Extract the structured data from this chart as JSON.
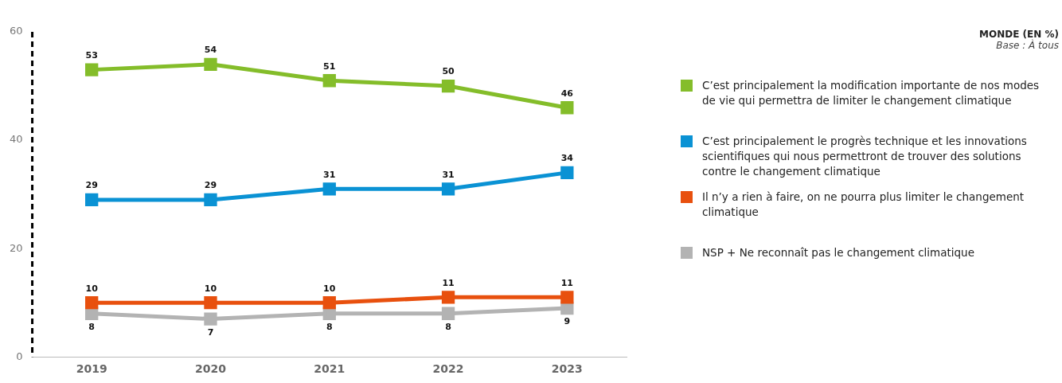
{
  "chart_data": {
    "type": "line",
    "title": "MONDE (EN %)",
    "subtitle": "Base : À tous",
    "categories": [
      "2019",
      "2020",
      "2021",
      "2022",
      "2023"
    ],
    "series": [
      {
        "name": "C’est principalement la modification importante de nos modes de vie qui permettra de limiter le changement climatique",
        "color": "#84bd2a",
        "values": [
          53,
          54,
          51,
          50,
          46
        ]
      },
      {
        "name": "C’est principalement le progrès technique et les innovations scientifiques qui nous permettront de trouver des solutions contre le changement climatique",
        "color": "#0a92d4",
        "values": [
          29,
          29,
          31,
          31,
          34
        ]
      },
      {
        "name": "Il n’y a rien à faire, on ne pourra plus limiter le changement climatique",
        "color": "#e8500e",
        "values": [
          10,
          10,
          10,
          11,
          11
        ]
      },
      {
        "name": "NSP + Ne reconnaît pas le changement climatique",
        "color": "#b3b3b3",
        "values": [
          8,
          7,
          8,
          8,
          9
        ]
      }
    ],
    "ylim": [
      0,
      60
    ],
    "yticks": [
      0,
      20,
      40,
      60
    ],
    "grid": false,
    "legend": "right",
    "marker": "square",
    "line_style": "solid",
    "data_labels": true
  }
}
